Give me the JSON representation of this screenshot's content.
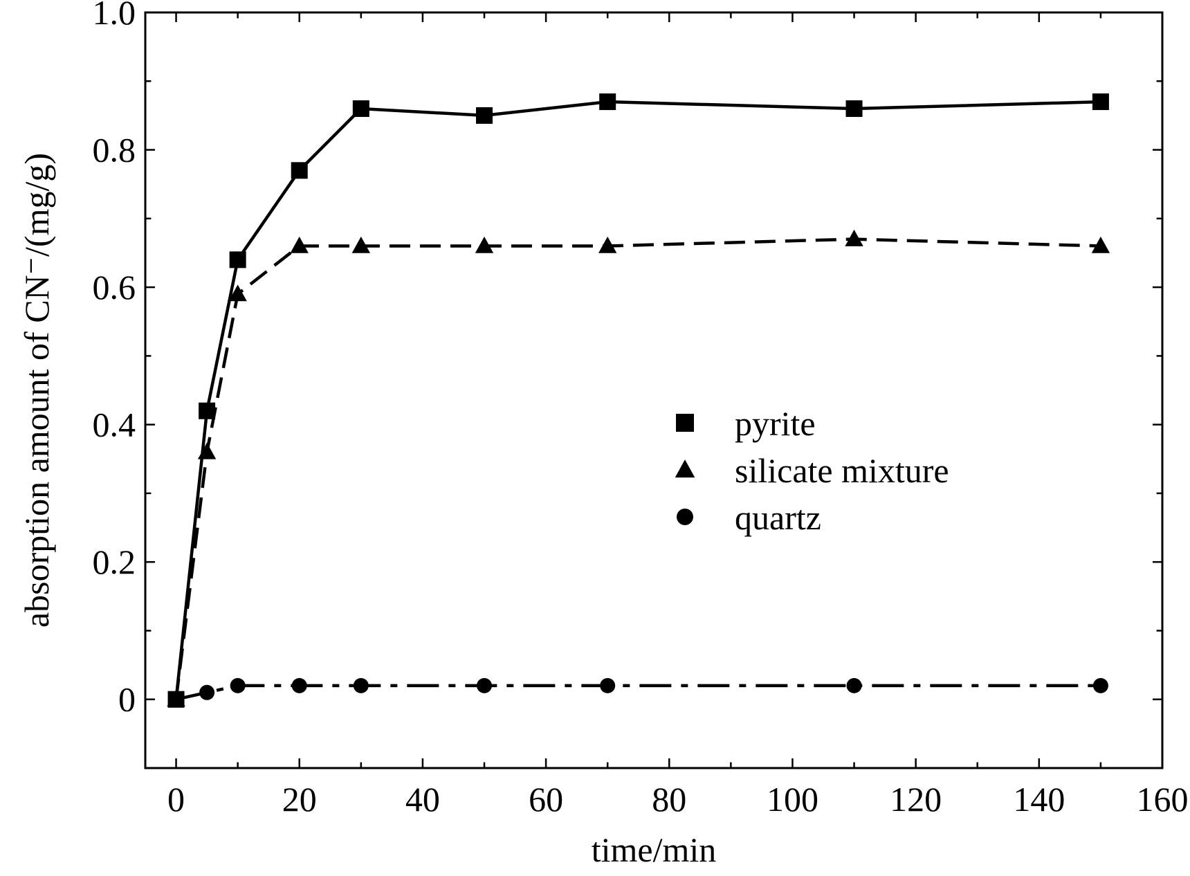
{
  "chart_data": {
    "type": "line",
    "xlabel": "time/min",
    "ylabel": "absorption amount of CN⁻/(mg/g)",
    "xlim": [
      -5,
      160
    ],
    "ylim": [
      -0.1,
      1.0
    ],
    "xticks": [
      0,
      20,
      40,
      60,
      80,
      100,
      120,
      140,
      160
    ],
    "xtick_labels": [
      "0",
      "20",
      "40",
      "60",
      "80",
      "100",
      "120",
      "140",
      "160"
    ],
    "yticks": [
      0,
      0.2,
      0.4,
      0.6,
      0.8,
      1.0
    ],
    "ytick_labels": [
      "0",
      "0.2",
      "0.4",
      "0.6",
      "0.8",
      "1.0"
    ],
    "grid": false,
    "legend_position": "center-right",
    "series": [
      {
        "name": "pyrite",
        "marker": "square",
        "line_style": "solid",
        "color": "#000000",
        "x": [
          0,
          5,
          10,
          20,
          30,
          50,
          70,
          110,
          150
        ],
        "y": [
          0.0,
          0.42,
          0.64,
          0.77,
          0.86,
          0.85,
          0.87,
          0.86,
          0.87
        ]
      },
      {
        "name": "silicate mixture",
        "marker": "triangle",
        "line_style": "dashed",
        "color": "#000000",
        "x": [
          0,
          5,
          10,
          20,
          30,
          50,
          70,
          110,
          150
        ],
        "y": [
          0.0,
          0.36,
          0.59,
          0.66,
          0.66,
          0.66,
          0.66,
          0.67,
          0.66
        ]
      },
      {
        "name": "quartz",
        "marker": "circle",
        "line_style": "dash-dot",
        "color": "#000000",
        "x": [
          0,
          5,
          10,
          20,
          30,
          50,
          70,
          110,
          150
        ],
        "y": [
          0.0,
          0.01,
          0.02,
          0.02,
          0.02,
          0.02,
          0.02,
          0.02,
          0.02
        ]
      }
    ]
  }
}
